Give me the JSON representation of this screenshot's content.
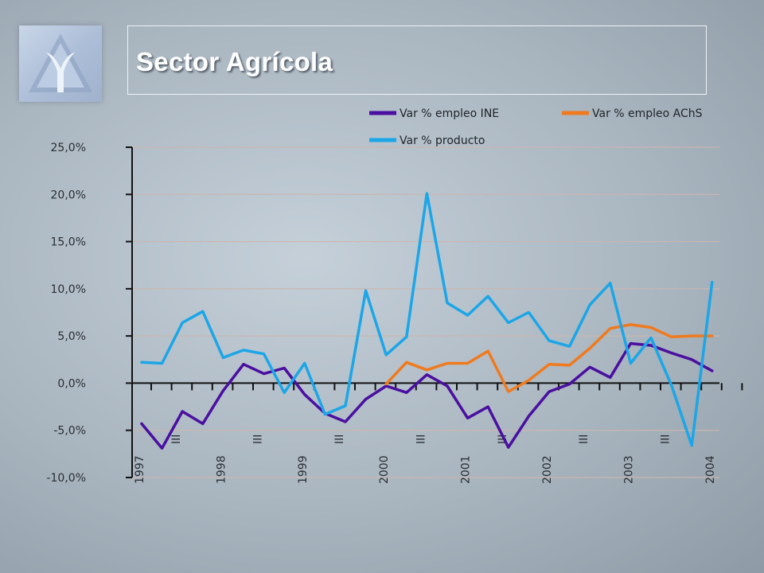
{
  "slide": {
    "title": "Sector Agrícola"
  },
  "chart_data": {
    "type": "line",
    "title": "",
    "xlabel": "",
    "ylabel": "",
    "ylim": [
      -10,
      25
    ],
    "yticks": [
      -10,
      -5,
      0,
      5,
      10,
      15,
      20,
      25
    ],
    "ytick_labels": [
      "-10,0%",
      "-5,0%",
      "0,0%",
      "5,0%",
      "10,0%",
      "15,0%",
      "20,0%",
      "25,0%"
    ],
    "grid": "horizontal",
    "legend_position": "top-right",
    "x_quarters": [
      "1997 I",
      "1997 II",
      "1997 III",
      "1997 IV",
      "1998 I",
      "1998 II",
      "1998 III",
      "1998 IV",
      "1999 I",
      "1999 II",
      "1999 III",
      "1999 IV",
      "2000 I",
      "2000 II",
      "2000 III",
      "2000 IV",
      "2001 I",
      "2001 II",
      "2001 III",
      "2001 IV",
      "2002 I",
      "2002 II",
      "2002 III",
      "2002 IV",
      "2003 I",
      "2003 II",
      "2003 III",
      "2003 IV",
      "2004 I"
    ],
    "year_labels": [
      {
        "index": 0,
        "text": "1997"
      },
      {
        "index": 4,
        "text": "1998"
      },
      {
        "index": 8,
        "text": "1999"
      },
      {
        "index": 12,
        "text": "2000"
      },
      {
        "index": 16,
        "text": "2001"
      },
      {
        "index": 20,
        "text": "2002"
      },
      {
        "index": 24,
        "text": "2003"
      },
      {
        "index": 28,
        "text": "2004"
      }
    ],
    "quarter_labels": [
      {
        "index": 2,
        "text": "III"
      },
      {
        "index": 6,
        "text": "III"
      },
      {
        "index": 10,
        "text": "III"
      },
      {
        "index": 14,
        "text": "III"
      },
      {
        "index": 18,
        "text": "III"
      },
      {
        "index": 22,
        "text": "III"
      },
      {
        "index": 26,
        "text": "III"
      }
    ],
    "series": [
      {
        "name": "Var % empleo INE",
        "color": "#4a0fa0",
        "start_index": 0,
        "values": [
          -4.3,
          -6.9,
          -3.0,
          -4.3,
          -0.8,
          2.0,
          1.0,
          1.6,
          -1.2,
          -3.2,
          -4.1,
          -1.7,
          -0.3,
          -1.0,
          0.9,
          -0.3,
          -3.7,
          -2.5,
          -6.8,
          -3.5,
          -0.9,
          -0.1,
          1.7,
          0.6,
          4.2,
          4.0,
          3.2,
          2.5,
          1.3
        ]
      },
      {
        "name": "Var % empleo AChS",
        "color": "#f07a1e",
        "start_index": 12,
        "values": [
          -0.1,
          2.2,
          1.4,
          2.1,
          2.1,
          3.4,
          -0.9,
          0.3,
          2.0,
          1.9,
          3.7,
          5.8,
          6.2,
          5.9,
          4.9,
          5.0,
          5.0
        ]
      },
      {
        "name": "Var % producto",
        "color": "#1ba6e8",
        "start_index": 0,
        "values": [
          2.2,
          2.1,
          6.4,
          7.6,
          2.7,
          3.5,
          3.1,
          -1.0,
          2.1,
          -3.3,
          -2.4,
          9.8,
          3.0,
          4.9,
          20.1,
          8.5,
          7.2,
          9.2,
          6.4,
          7.5,
          4.5,
          3.9,
          8.3,
          10.6,
          2.1,
          4.8,
          -0.2,
          -6.6,
          10.7
        ]
      }
    ]
  }
}
